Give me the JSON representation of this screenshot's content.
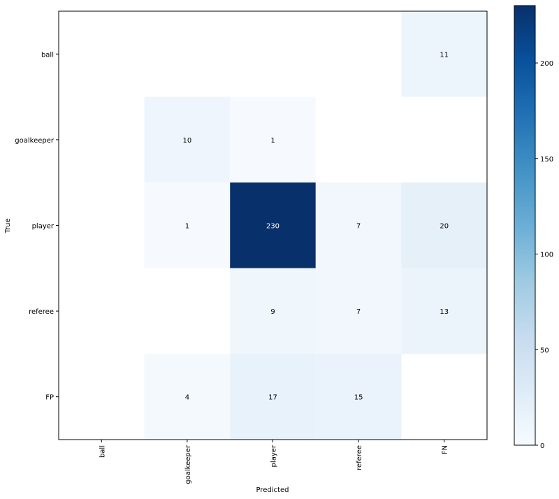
{
  "chart_data": {
    "type": "heatmap",
    "title": "",
    "xlabel": "Predicted",
    "ylabel": "True",
    "x_categories": [
      "ball",
      "goalkeeper",
      "player",
      "referee",
      "FN"
    ],
    "y_categories": [
      "ball",
      "goalkeeper",
      "player",
      "referee",
      "FP"
    ],
    "matrix": [
      [
        null,
        null,
        null,
        null,
        11
      ],
      [
        null,
        10,
        1,
        null,
        null
      ],
      [
        null,
        1,
        230,
        7,
        20
      ],
      [
        null,
        null,
        9,
        7,
        13
      ],
      [
        null,
        4,
        17,
        15,
        null
      ]
    ],
    "colorscale": "Blues",
    "color_range": [
      0,
      230
    ],
    "colorbar_ticks": [
      0,
      50,
      100,
      150,
      200
    ],
    "grid": false
  }
}
